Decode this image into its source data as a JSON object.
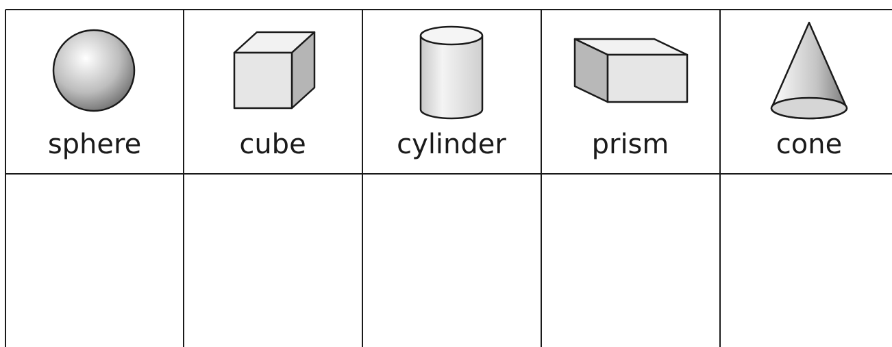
{
  "table": {
    "headers": [
      "sphere",
      "cube",
      "cylinder",
      "prism",
      "cone"
    ]
  }
}
